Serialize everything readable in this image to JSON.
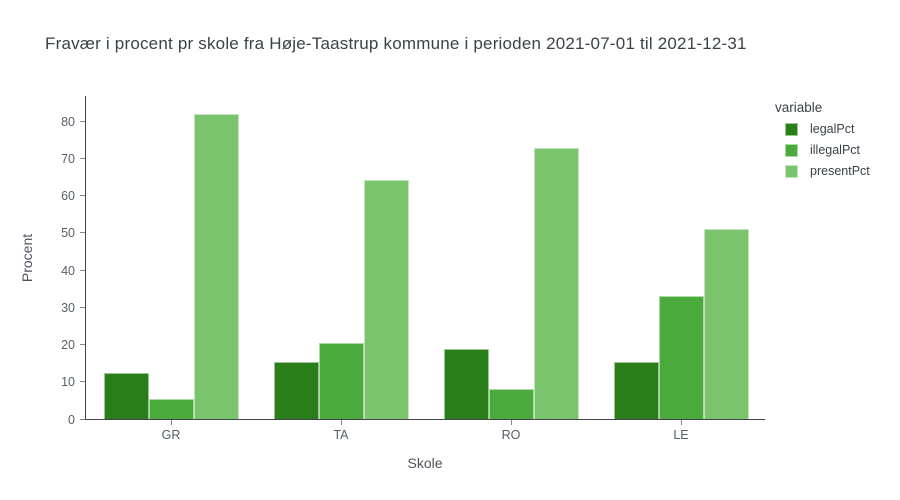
{
  "title": "Fravær i procent pr skole fra Høje-Taastrup kommune i perioden 2021-07-01 til 2021-12-31",
  "chart_data": {
    "type": "bar",
    "mode": "grouped",
    "categories": [
      "GR",
      "TA",
      "RO",
      "LE"
    ],
    "series": [
      {
        "name": "legalPct",
        "color": "#2a7e19",
        "values": [
          12.3,
          15.2,
          18.8,
          15.2
        ]
      },
      {
        "name": "illegalPct",
        "color": "#4aaa3c",
        "values": [
          5.4,
          20.3,
          8.0,
          33.1
        ]
      },
      {
        "name": "presentPct",
        "color": "#7bc46e",
        "values": [
          81.9,
          64.2,
          72.8,
          51.1
        ]
      }
    ],
    "xlabel": "Skole",
    "ylabel": "Procent",
    "ylim": [
      0,
      87
    ],
    "yticks": [
      0,
      10,
      20,
      30,
      40,
      50,
      60,
      70,
      80
    ],
    "grid": false,
    "legend": {
      "title": "variable",
      "position": "right",
      "entries": [
        "legalPct",
        "illegalPct",
        "presentPct"
      ]
    }
  }
}
